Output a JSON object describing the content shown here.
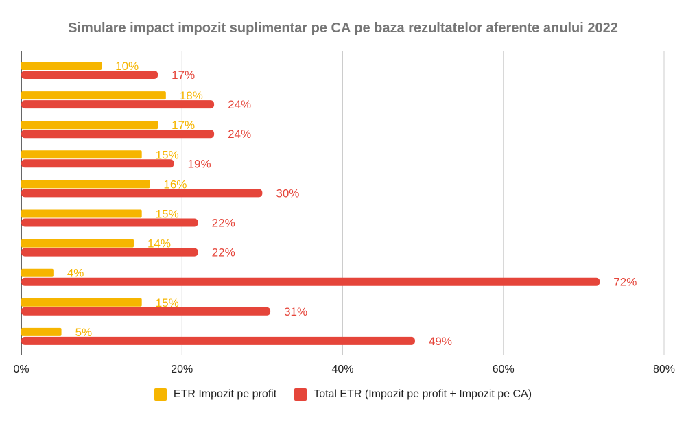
{
  "chart_data": {
    "type": "bar",
    "orientation": "horizontal",
    "title": "Simulare impact impozit suplimentar pe CA pe baza rezultatelor aferente anului 2022",
    "xlim": [
      0,
      80
    ],
    "xticks": [
      "0%",
      "20%",
      "40%",
      "60%",
      "80%"
    ],
    "grid": true,
    "legend_position": "bottom",
    "categories": [
      "",
      "",
      "",
      "",
      "",
      "",
      "",
      "",
      "",
      ""
    ],
    "series": [
      {
        "name": "ETR Impozit pe profit",
        "color": "#F6B500",
        "values": [
          10,
          18,
          17,
          15,
          16,
          15,
          14,
          4,
          15,
          5
        ],
        "labels": [
          "10%",
          "18%",
          "17%",
          "15%",
          "16%",
          "15%",
          "14%",
          "4%",
          "15%",
          "5%"
        ]
      },
      {
        "name": "Total ETR (Impozit pe profit + Impozit pe CA)",
        "color": "#E5453A",
        "values": [
          17,
          24,
          24,
          19,
          30,
          22,
          22,
          72,
          31,
          49
        ],
        "labels": [
          "17%",
          "24%",
          "24%",
          "19%",
          "30%",
          "22%",
          "22%",
          "72%",
          "31%",
          "49%"
        ]
      }
    ]
  }
}
